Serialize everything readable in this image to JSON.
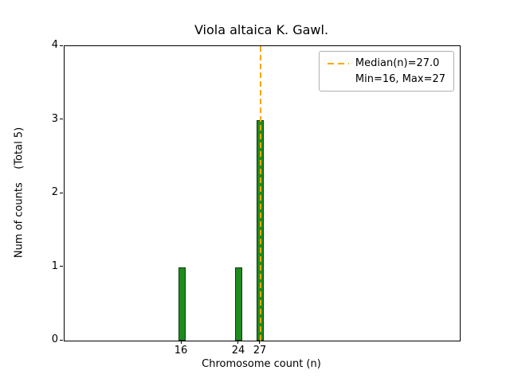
{
  "chart_data": {
    "type": "bar",
    "title": "Viola altaica K. Gawl.",
    "xlabel": "Chromosome count (n)",
    "ylabel": "Num of counts    (Total 5)",
    "total_counts": 5,
    "x": [
      16,
      24,
      27
    ],
    "values": [
      1,
      1,
      3
    ],
    "bar_width": 1.0,
    "bar_color": "#1f8b1f",
    "bar_edge_color": "#0a3d0a",
    "xlim": [
      -0.35,
      54.8
    ],
    "ylim": [
      0,
      4
    ],
    "xticks": [
      16,
      24,
      27
    ],
    "yticks": [
      0,
      1,
      2,
      3,
      4
    ],
    "grid": false,
    "median": 27.0,
    "min": 16,
    "max": 27,
    "median_line_color": "#FFA500",
    "median_line_style": "dashed",
    "legend": {
      "position": "upper right",
      "entries": [
        {
          "label": "Median(n)=27.0",
          "symbol": "dashed-line",
          "color": "#FFA500"
        },
        {
          "label": "Min=16, Max=27",
          "symbol": "none",
          "color": ""
        }
      ]
    }
  }
}
